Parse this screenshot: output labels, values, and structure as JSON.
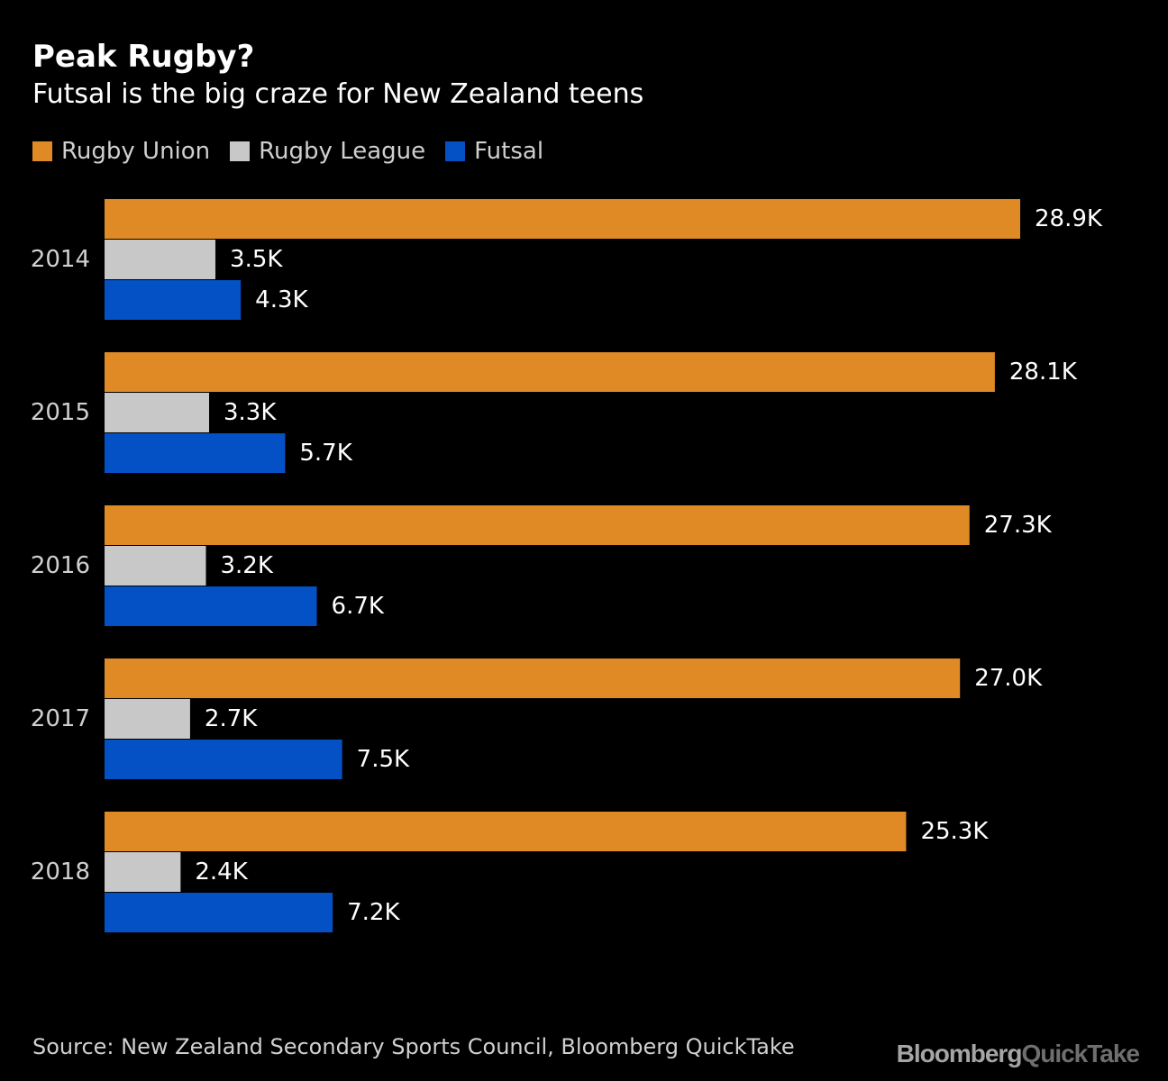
{
  "title": "Peak Rugby?",
  "subtitle": "Futsal is the big craze for New Zealand teens",
  "legend": [
    {
      "label": "Rugby Union",
      "color": "#E08A25"
    },
    {
      "label": "Rugby League",
      "color": "#C8C8C8"
    },
    {
      "label": "Futsal",
      "color": "#0451C6"
    }
  ],
  "source": "Source: New Zealand Secondary Sports Council, Bloomberg QuickTake",
  "brand": {
    "part1": "Bloomberg",
    "part2": "QuickTake"
  },
  "chart_data": {
    "type": "bar",
    "orientation": "horizontal",
    "categories": [
      "2014",
      "2015",
      "2016",
      "2017",
      "2018"
    ],
    "series": [
      {
        "name": "Rugby Union",
        "color": "#E08A25",
        "values": [
          28.9,
          28.1,
          27.3,
          27.0,
          25.3
        ],
        "labels": [
          "28.9K",
          "28.1K",
          "27.3K",
          "27.0K",
          "25.3K"
        ]
      },
      {
        "name": "Rugby League",
        "color": "#C8C8C8",
        "values": [
          3.5,
          3.3,
          3.2,
          2.7,
          2.4
        ],
        "labels": [
          "3.5K",
          "3.3K",
          "3.2K",
          "2.7K",
          "2.4K"
        ]
      },
      {
        "name": "Futsal",
        "color": "#0451C6",
        "values": [
          4.3,
          5.7,
          6.7,
          7.5,
          7.2
        ],
        "labels": [
          "4.3K",
          "5.7K",
          "6.7K",
          "7.5K",
          "7.2K"
        ]
      }
    ],
    "xlim": [
      0,
      28.9
    ],
    "unit": "K",
    "grid": false,
    "legend_position": "top-left"
  }
}
